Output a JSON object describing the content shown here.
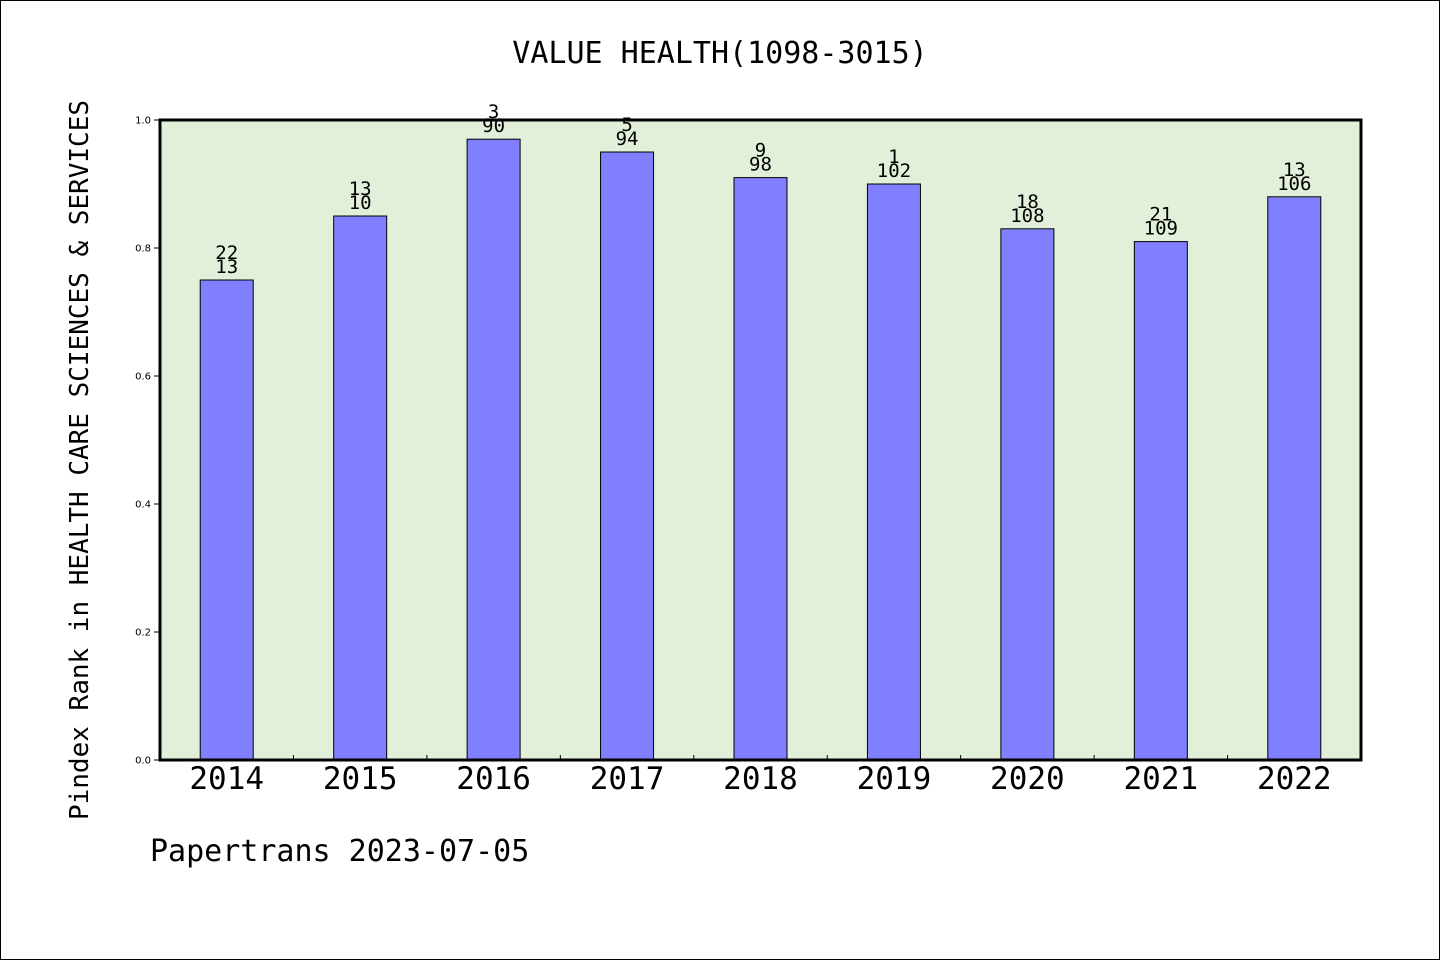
{
  "chart_data": {
    "type": "bar",
    "title": "VALUE HEALTH(1098-3015)",
    "xlabel": "",
    "ylabel": "Pindex Rank in HEALTH CARE SCIENCES & SERVICES",
    "categories": [
      "2014",
      "2015",
      "2016",
      "2017",
      "2018",
      "2019",
      "2020",
      "2021",
      "2022"
    ],
    "values": [
      0.75,
      0.85,
      0.97,
      0.95,
      0.91,
      0.9,
      0.83,
      0.81,
      0.88
    ],
    "top_labels": [
      "22",
      "13",
      "3",
      "5",
      "9",
      "1",
      "18",
      "21",
      "13"
    ],
    "bottom_labels": [
      "13",
      "10",
      "90",
      "94",
      "98",
      "102",
      "108",
      "109",
      "106"
    ],
    "ylim": [
      0,
      1.0
    ],
    "yticks": [
      "0.0",
      "0.2",
      "0.4",
      "0.6",
      "0.8",
      "1.0"
    ],
    "grid": false,
    "colors": {
      "bar": "#8080ff",
      "plot_background": "#e2f0d9"
    }
  },
  "footer": "Papertrans 2023-07-05"
}
